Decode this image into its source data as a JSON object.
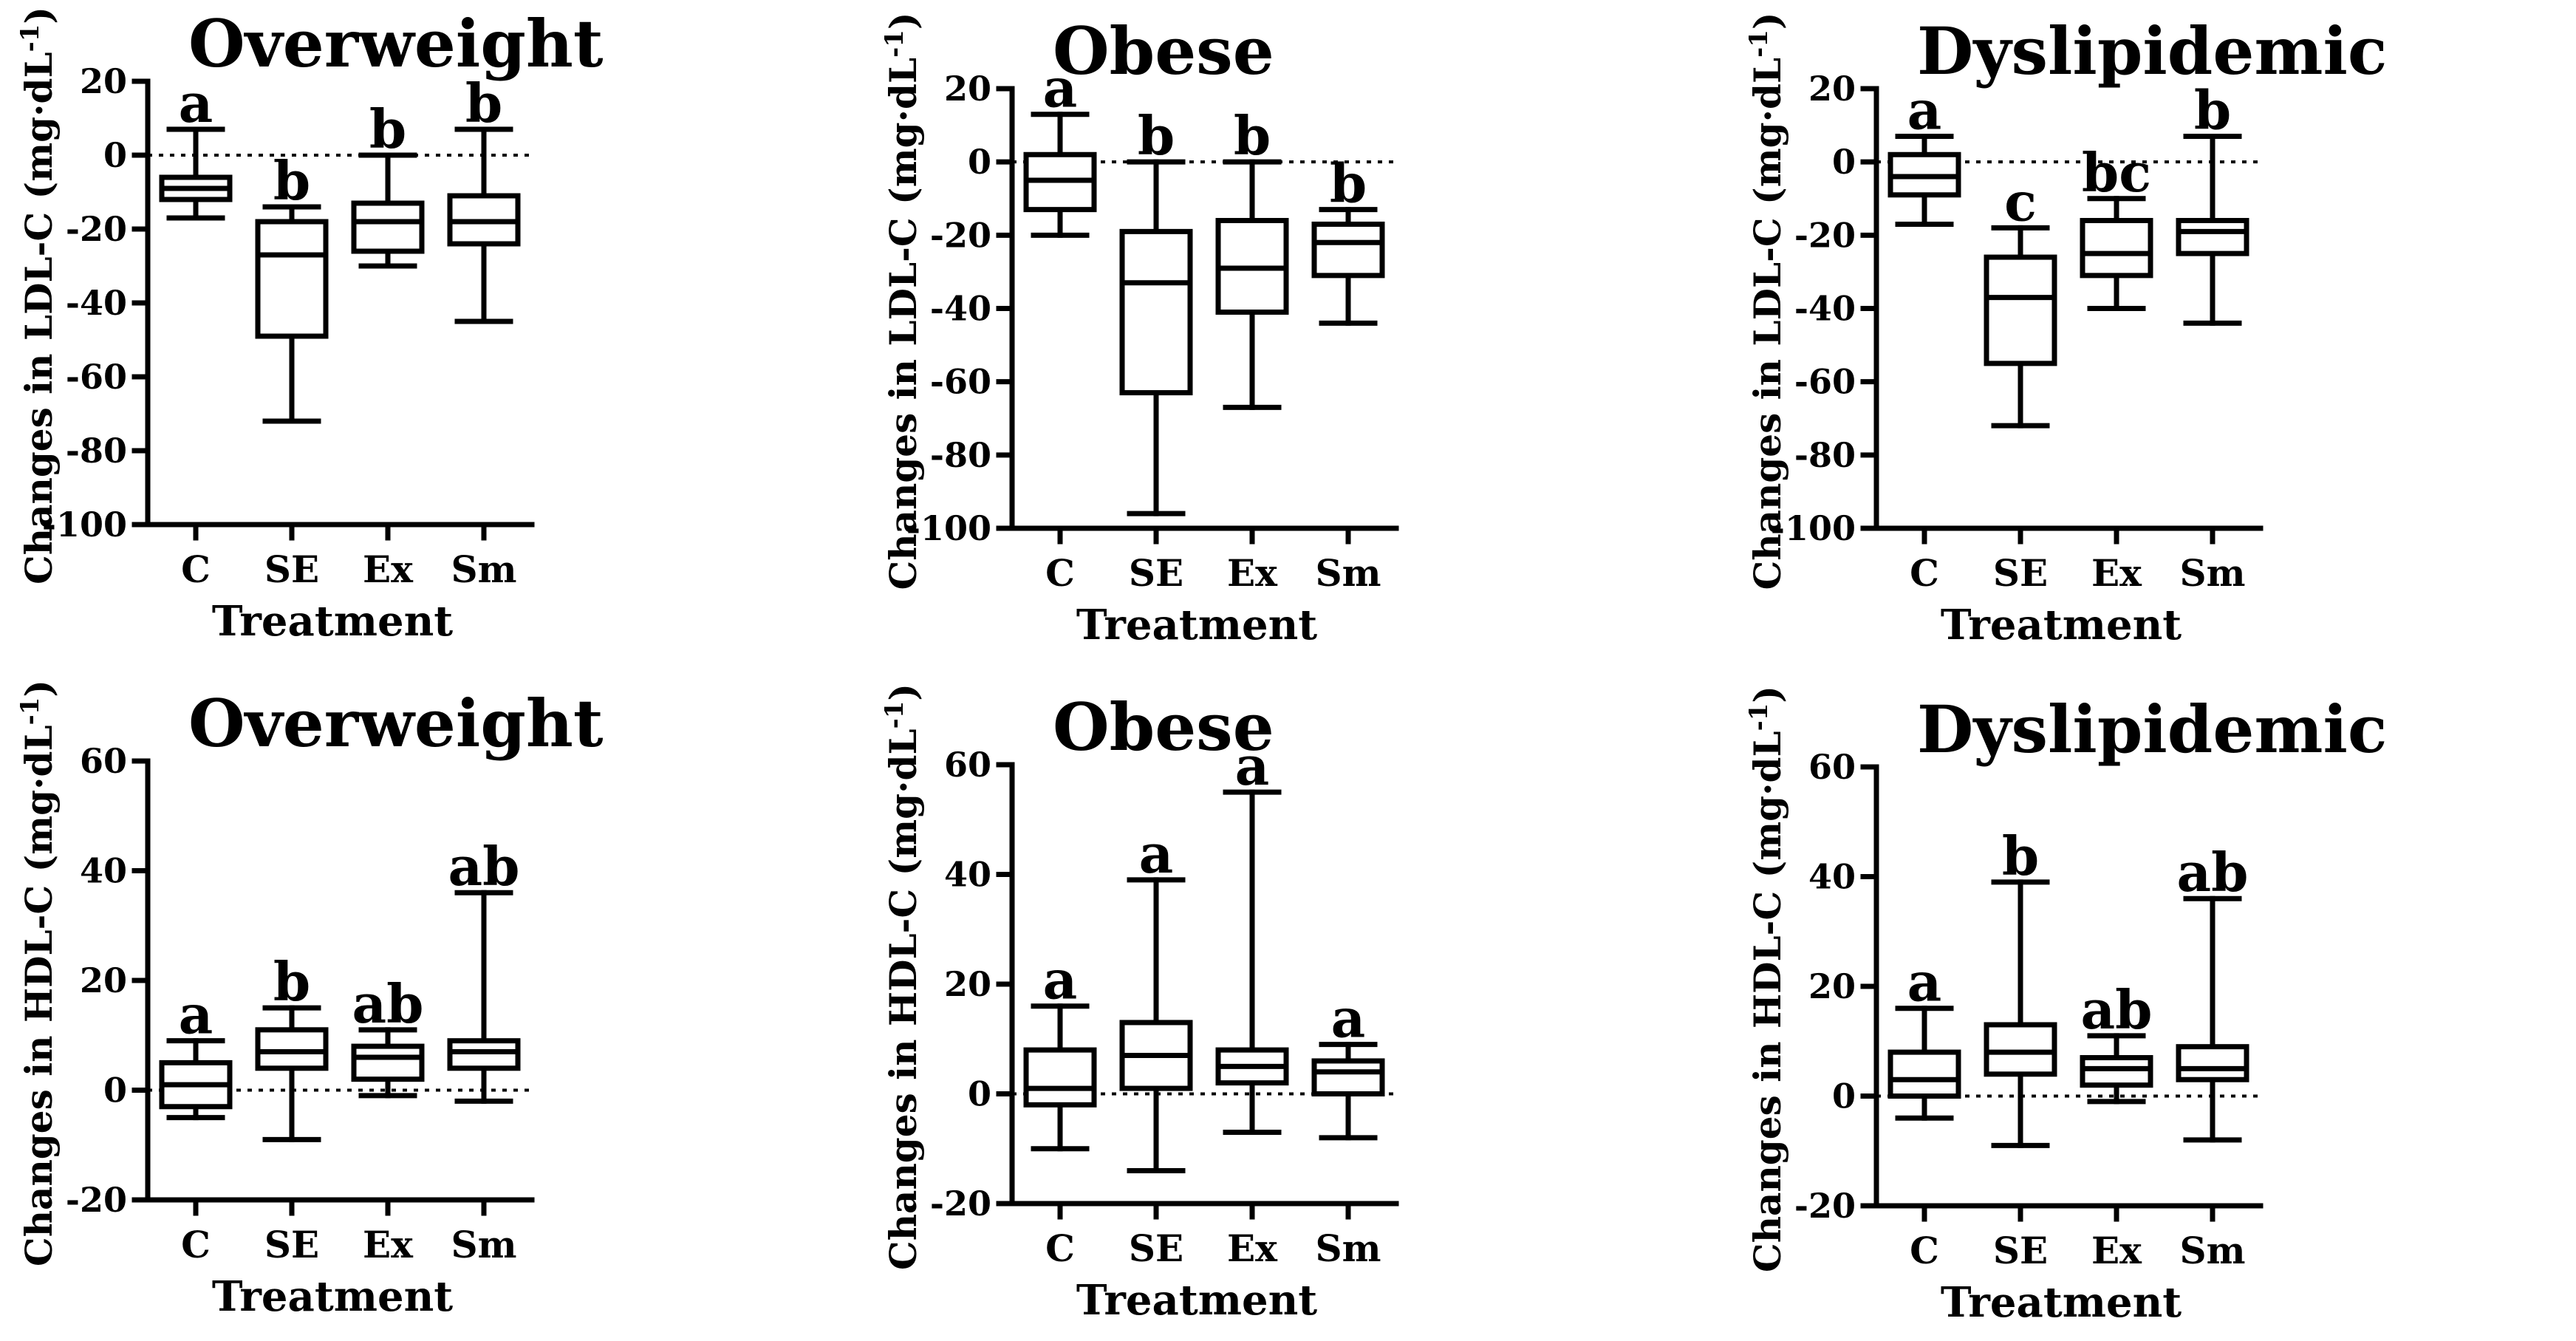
{
  "chart_data": [
    {
      "type": "boxplot",
      "title": "Overweight",
      "xlabel": "Treatment",
      "ylabel": "Changes in LDL-C (mg·dL",
      "ylabel_sup": "-1",
      "ylabel_close": ")",
      "ylim": [
        -100,
        20
      ],
      "yticks": [
        "20",
        "0",
        "-20",
        "-40",
        "-60",
        "-80",
        "-100"
      ],
      "reference_line": 0,
      "categories": [
        "C",
        "SE",
        "Ex",
        "Sm"
      ],
      "boxes": [
        {
          "min": -17,
          "q1": -12,
          "median": -9,
          "q3": -6,
          "max": 7,
          "letter": "a"
        },
        {
          "min": -72,
          "q1": -49,
          "median": -27,
          "q3": -18,
          "max": -14,
          "letter": "b"
        },
        {
          "min": -30,
          "q1": -26,
          "median": -18,
          "q3": -13,
          "max": 0,
          "letter": "b"
        },
        {
          "min": -45,
          "q1": -24,
          "median": -18,
          "q3": -11,
          "max": 7,
          "letter": "b"
        }
      ]
    },
    {
      "type": "boxplot",
      "title": "Obese",
      "xlabel": "Treatment",
      "ylabel": "Changes in LDL-C (mg·dL",
      "ylabel_sup": "-1",
      "ylabel_close": ")",
      "ylim": [
        -100,
        20
      ],
      "yticks": [
        "20",
        "0",
        "-20",
        "-40",
        "-60",
        "-80",
        "-100"
      ],
      "reference_line": 0,
      "categories": [
        "C",
        "SE",
        "Ex",
        "Sm"
      ],
      "boxes": [
        {
          "min": -20,
          "q1": -13,
          "median": -5,
          "q3": 2,
          "max": 13,
          "letter": "a"
        },
        {
          "min": -96,
          "q1": -63,
          "median": -33,
          "q3": -19,
          "max": 0,
          "letter": "b"
        },
        {
          "min": -67,
          "q1": -41,
          "median": -29,
          "q3": -16,
          "max": 0,
          "letter": "b"
        },
        {
          "min": -44,
          "q1": -31,
          "median": -22,
          "q3": -17,
          "max": -13,
          "letter": "b"
        }
      ]
    },
    {
      "type": "boxplot",
      "title": "Dyslipidemic",
      "xlabel": "Treatment",
      "ylabel": "Changes in LDL-C (mg·dL",
      "ylabel_sup": "-1",
      "ylabel_close": ")",
      "ylim": [
        -100,
        20
      ],
      "yticks": [
        "20",
        "0",
        "-20",
        "-40",
        "-60",
        "-80",
        "-100"
      ],
      "reference_line": 0,
      "categories": [
        "C",
        "SE",
        "Ex",
        "Sm"
      ],
      "boxes": [
        {
          "min": -17,
          "q1": -9,
          "median": -4,
          "q3": 2,
          "max": 7,
          "letter": "a"
        },
        {
          "min": -72,
          "q1": -55,
          "median": -37,
          "q3": -26,
          "max": -18,
          "letter": "c"
        },
        {
          "min": -40,
          "q1": -31,
          "median": -25,
          "q3": -16,
          "max": -10,
          "letter": "bc"
        },
        {
          "min": -44,
          "q1": -25,
          "median": -19,
          "q3": -16,
          "max": 7,
          "letter": "b"
        }
      ]
    },
    {
      "type": "boxplot",
      "title": "Overweight",
      "xlabel": "Treatment",
      "ylabel": "Changes in HDL-C (mg·dL",
      "ylabel_sup": "-1",
      "ylabel_close": ")",
      "ylim": [
        -20,
        60
      ],
      "yticks": [
        "60",
        "40",
        "20",
        "0",
        "-20"
      ],
      "reference_line": 0,
      "categories": [
        "C",
        "SE",
        "Ex",
        "Sm"
      ],
      "boxes": [
        {
          "min": -5,
          "q1": -3,
          "median": 1,
          "q3": 5,
          "max": 9,
          "letter": "a"
        },
        {
          "min": -9,
          "q1": 4,
          "median": 7,
          "q3": 11,
          "max": 15,
          "letter": "b"
        },
        {
          "min": -1,
          "q1": 2,
          "median": 6,
          "q3": 8,
          "max": 11,
          "letter": "ab"
        },
        {
          "min": -2,
          "q1": 4,
          "median": 7,
          "q3": 9,
          "max": 36,
          "letter": "ab"
        }
      ]
    },
    {
      "type": "boxplot",
      "title": "Obese",
      "xlabel": "Treatment",
      "ylabel": "Changes in HDL-C (mg·dL",
      "ylabel_sup": "-1",
      "ylabel_close": ")",
      "ylim": [
        -20,
        60
      ],
      "yticks": [
        "60",
        "40",
        "20",
        "0",
        "-20"
      ],
      "reference_line": 0,
      "categories": [
        "C",
        "SE",
        "Ex",
        "Sm"
      ],
      "boxes": [
        {
          "min": -10,
          "q1": -2,
          "median": 1,
          "q3": 8,
          "max": 16,
          "letter": "a"
        },
        {
          "min": -14,
          "q1": 1,
          "median": 7,
          "q3": 13,
          "max": 39,
          "letter": "a"
        },
        {
          "min": -7,
          "q1": 2,
          "median": 5,
          "q3": 8,
          "max": 55,
          "letter": "a"
        },
        {
          "min": -8,
          "q1": 0,
          "median": 4,
          "q3": 6,
          "max": 9,
          "letter": "a"
        }
      ]
    },
    {
      "type": "boxplot",
      "title": "Dyslipidemic",
      "xlabel": "Treatment",
      "ylabel": "Changes in HDL-C (mg·dL",
      "ylabel_sup": "-1",
      "ylabel_close": ")",
      "ylim": [
        -20,
        60
      ],
      "yticks": [
        "60",
        "40",
        "20",
        "0",
        "-20"
      ],
      "reference_line": 0,
      "categories": [
        "C",
        "SE",
        "Ex",
        "Sm"
      ],
      "boxes": [
        {
          "min": -4,
          "q1": 0,
          "median": 3,
          "q3": 8,
          "max": 16,
          "letter": "a"
        },
        {
          "min": -9,
          "q1": 4,
          "median": 8,
          "q3": 13,
          "max": 39,
          "letter": "b"
        },
        {
          "min": -1,
          "q1": 2,
          "median": 5,
          "q3": 7,
          "max": 11,
          "letter": "ab"
        },
        {
          "min": -8,
          "q1": 3,
          "median": 5,
          "q3": 9,
          "max": 36,
          "letter": "ab"
        }
      ]
    }
  ]
}
